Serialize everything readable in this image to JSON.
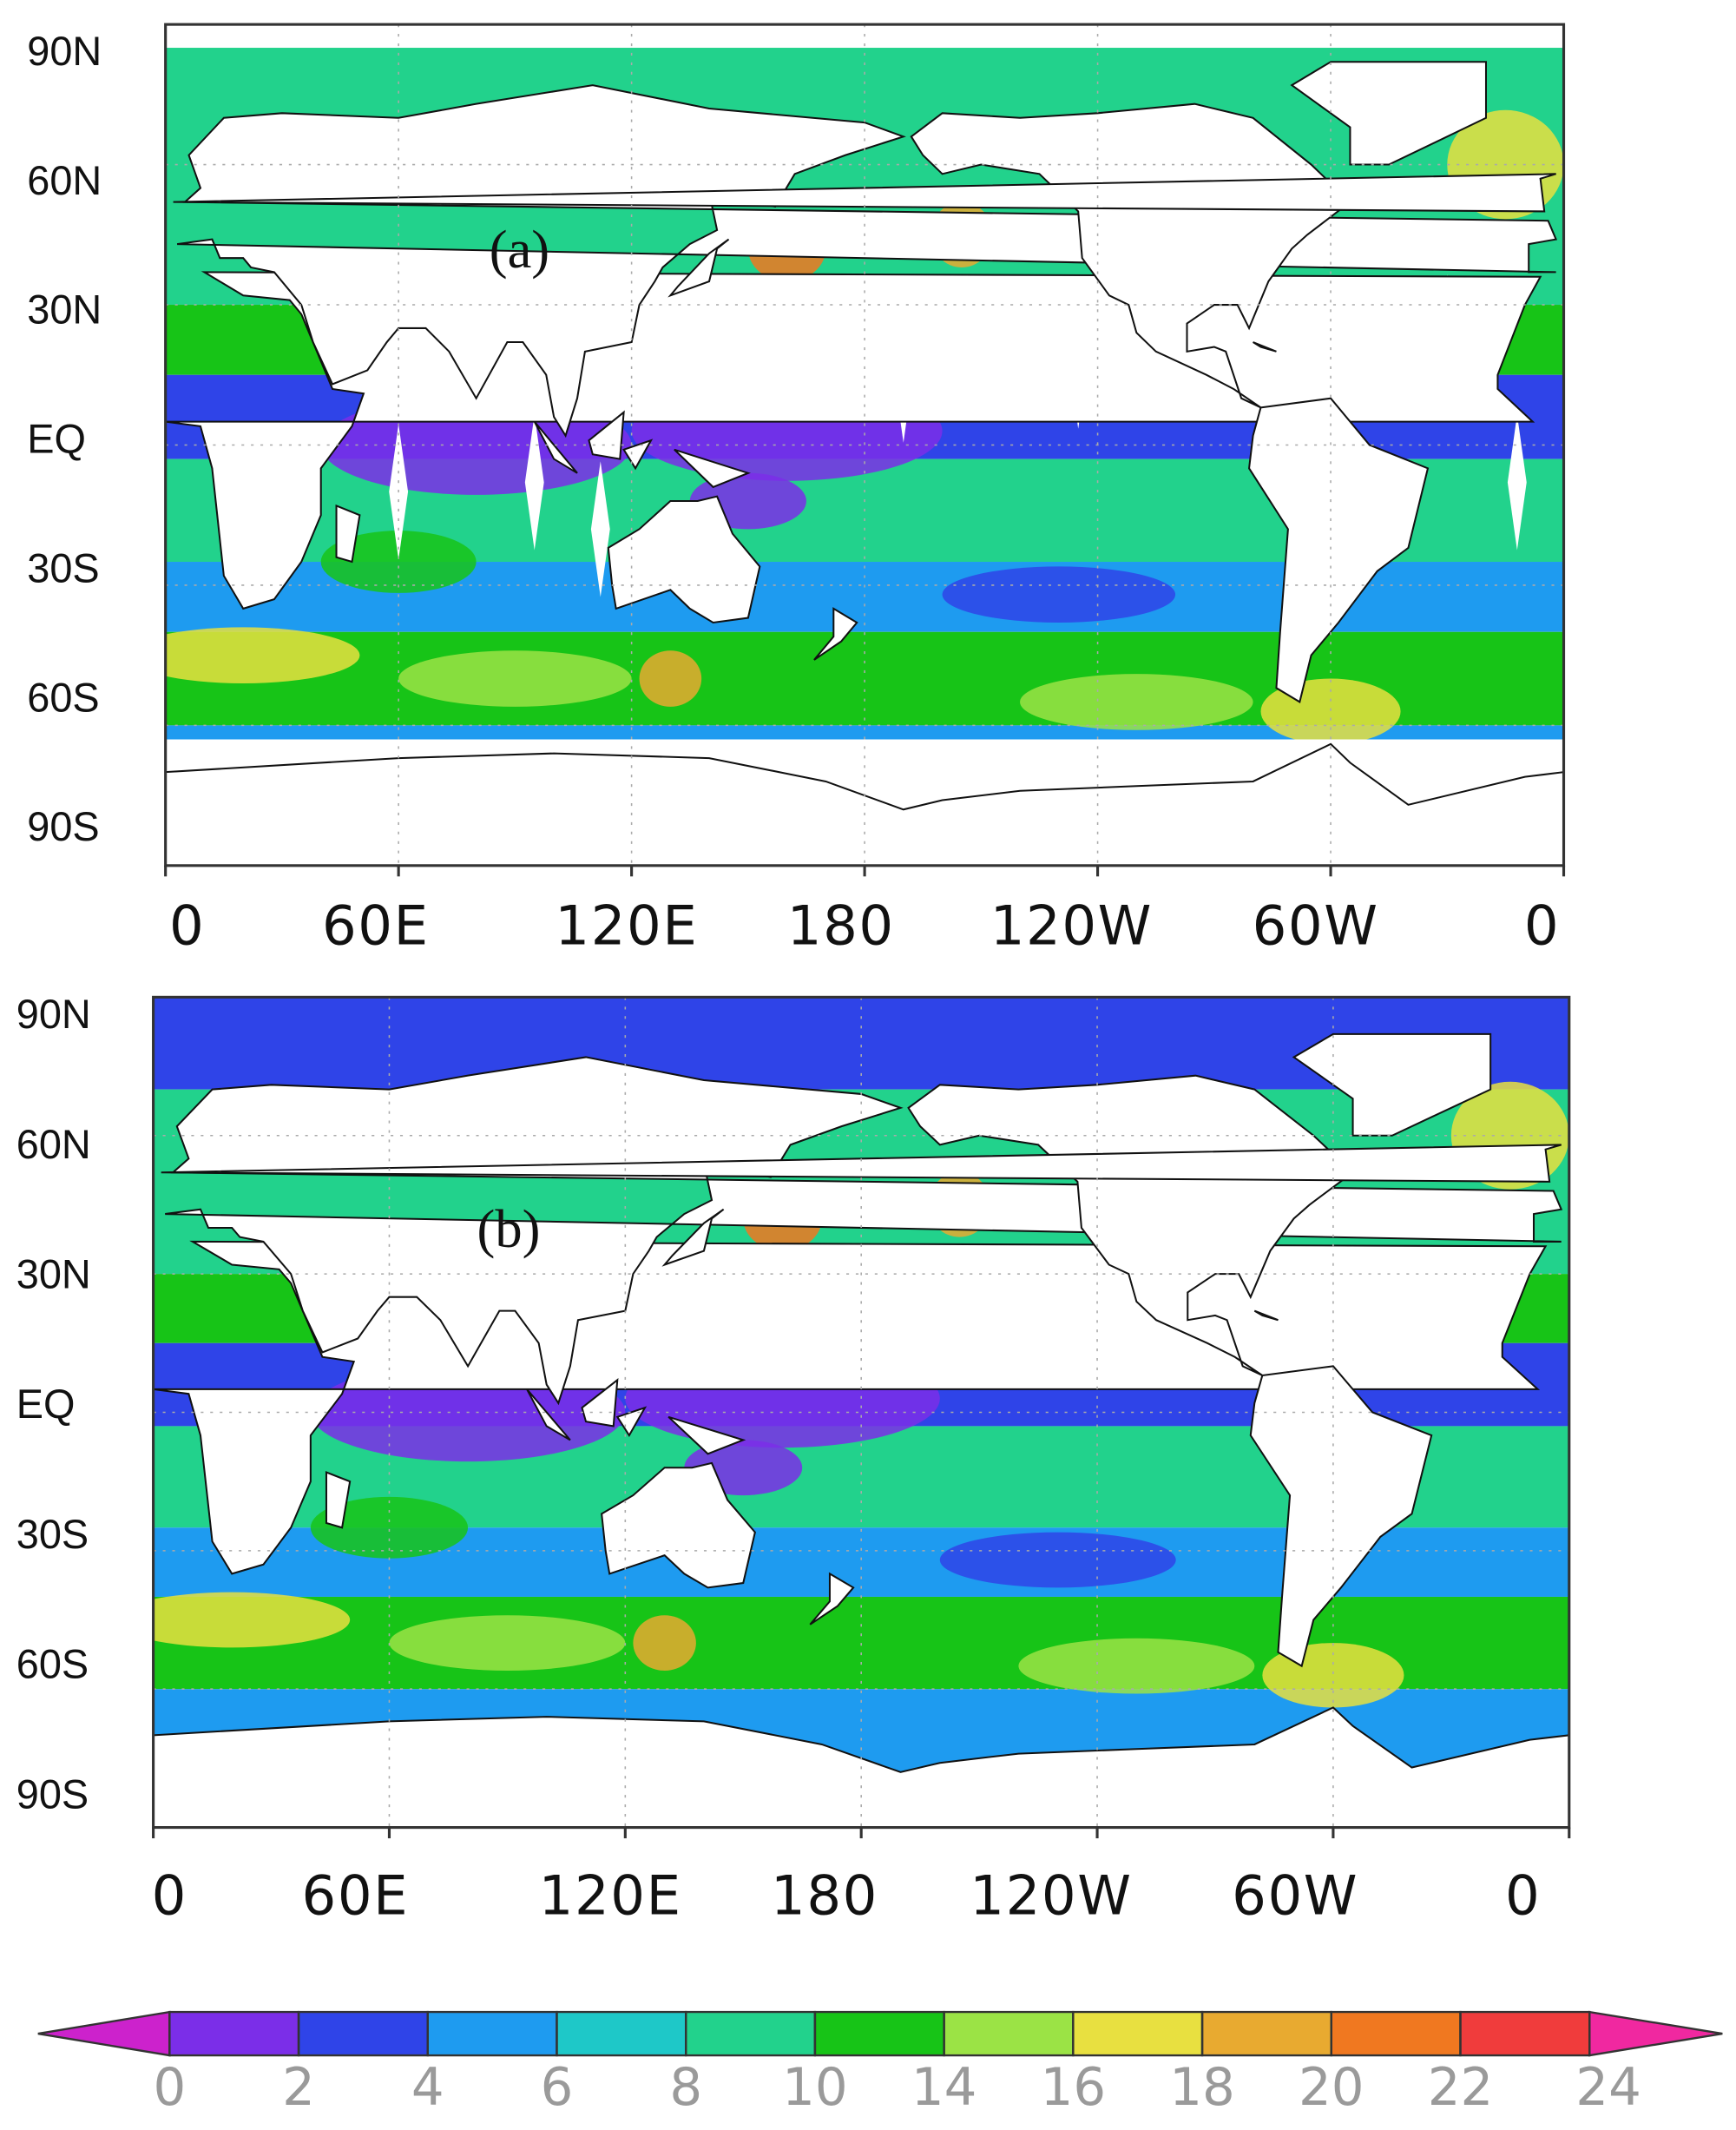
{
  "panels": [
    {
      "label": "(a)",
      "lat_labels": [
        "90N",
        "60N",
        "30N",
        "EQ",
        "30S",
        "60S",
        "90S"
      ],
      "lon_labels": [
        "0",
        "60E",
        "120E",
        "180",
        "120W",
        "60W",
        "0"
      ]
    },
    {
      "label": "(b)",
      "lat_labels": [
        "90N",
        "60N",
        "30N",
        "EQ",
        "30S",
        "60S",
        "90S"
      ],
      "lon_labels": [
        "0",
        "60E",
        "120E",
        "180",
        "120W",
        "60W",
        "0"
      ]
    }
  ],
  "colorbar": {
    "levels": [
      0,
      2,
      4,
      6,
      8,
      10,
      14,
      16,
      18,
      20,
      22,
      24
    ],
    "colors": [
      "#cc22cc",
      "#7b2ee8",
      "#2f44e8",
      "#1e9bf0",
      "#1ec8c8",
      "#22d28c",
      "#17c417",
      "#9be345",
      "#e8e040",
      "#e8aa30",
      "#f07820",
      "#f03c3c",
      "#f028a0"
    ]
  }
}
